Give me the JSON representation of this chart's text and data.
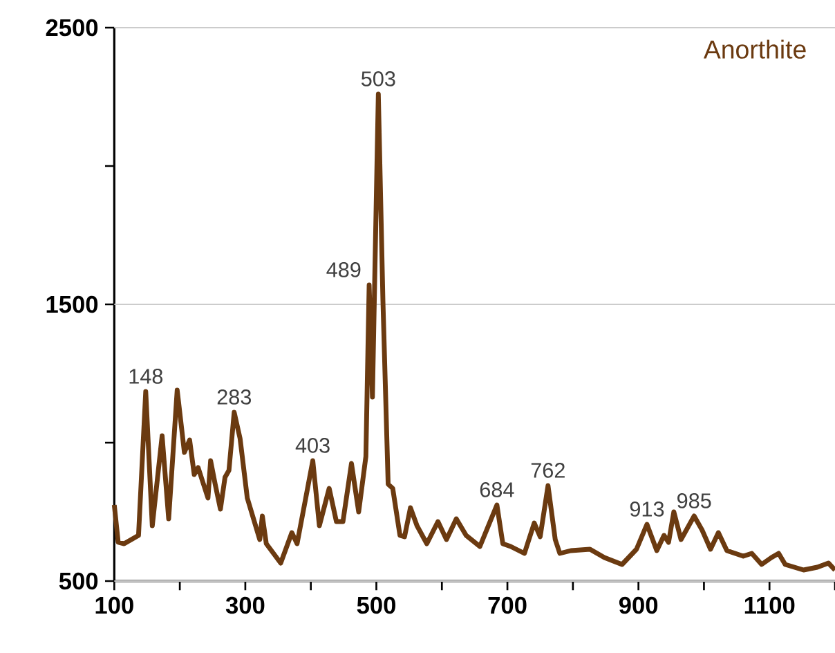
{
  "chart_data": {
    "type": "line",
    "title": "Anorthite",
    "x": [
      100,
      106,
      115,
      137,
      148,
      158,
      173,
      183,
      196,
      207,
      215,
      222,
      228,
      243,
      247,
      254,
      262,
      269,
      275,
      283,
      292,
      303,
      322,
      326,
      332,
      354,
      371,
      379,
      403,
      413,
      428,
      439,
      449,
      462,
      473,
      484,
      489,
      494,
      503,
      510,
      518,
      525,
      536,
      543,
      552,
      562,
      577,
      594,
      607,
      622,
      637,
      658,
      684,
      693,
      705,
      726,
      741,
      750,
      762,
      773,
      780,
      797,
      826,
      848,
      875,
      897,
      913,
      928,
      939,
      946,
      954,
      965,
      985,
      997,
      1010,
      1022,
      1035,
      1060,
      1073,
      1088,
      1103,
      1114,
      1124,
      1152,
      1173,
      1190,
      1200
    ],
    "values": [
      775,
      640,
      635,
      665,
      1185,
      700,
      1025,
      725,
      1190,
      965,
      1010,
      885,
      910,
      800,
      935,
      850,
      760,
      875,
      900,
      1110,
      1015,
      800,
      650,
      735,
      635,
      565,
      675,
      635,
      935,
      700,
      835,
      715,
      715,
      925,
      750,
      950,
      1570,
      1165,
      2260,
      1515,
      850,
      835,
      665,
      660,
      765,
      700,
      635,
      715,
      650,
      725,
      665,
      625,
      775,
      635,
      625,
      600,
      710,
      660,
      845,
      650,
      600,
      610,
      615,
      585,
      560,
      615,
      705,
      610,
      665,
      640,
      750,
      650,
      735,
      685,
      615,
      675,
      610,
      590,
      600,
      560,
      585,
      600,
      560,
      540,
      550,
      565,
      540
    ],
    "color": "#6b3a10",
    "xlim": [
      100,
      1200
    ],
    "xticks": [
      100,
      {
        "value": 200,
        "label": null
      },
      300,
      {
        "value": 400,
        "label": null
      },
      500,
      {
        "value": 600,
        "label": null
      },
      700,
      {
        "value": 800,
        "label": null
      },
      900,
      {
        "value": 1000,
        "label": null
      },
      1100,
      {
        "value": 1200,
        "label": null
      }
    ],
    "ylim": [
      500,
      2500
    ],
    "yticks": [
      500,
      {
        "value": 1000,
        "label": null
      },
      1500,
      {
        "value": 2000,
        "label": null
      },
      2500
    ],
    "grid": "y",
    "annotations": [
      {
        "text": "148",
        "x": 148,
        "y": 1185
      },
      {
        "text": "283",
        "x": 283,
        "y": 1110
      },
      {
        "text": "403",
        "x": 403,
        "y": 935
      },
      {
        "text": "489",
        "x": 489,
        "y": 1570
      },
      {
        "text": "503",
        "x": 503,
        "y": 2260
      },
      {
        "text": "684",
        "x": 684,
        "y": 775
      },
      {
        "text": "762",
        "x": 762,
        "y": 845
      },
      {
        "text": "913",
        "x": 913,
        "y": 705
      },
      {
        "text": "985",
        "x": 985,
        "y": 735
      }
    ]
  }
}
